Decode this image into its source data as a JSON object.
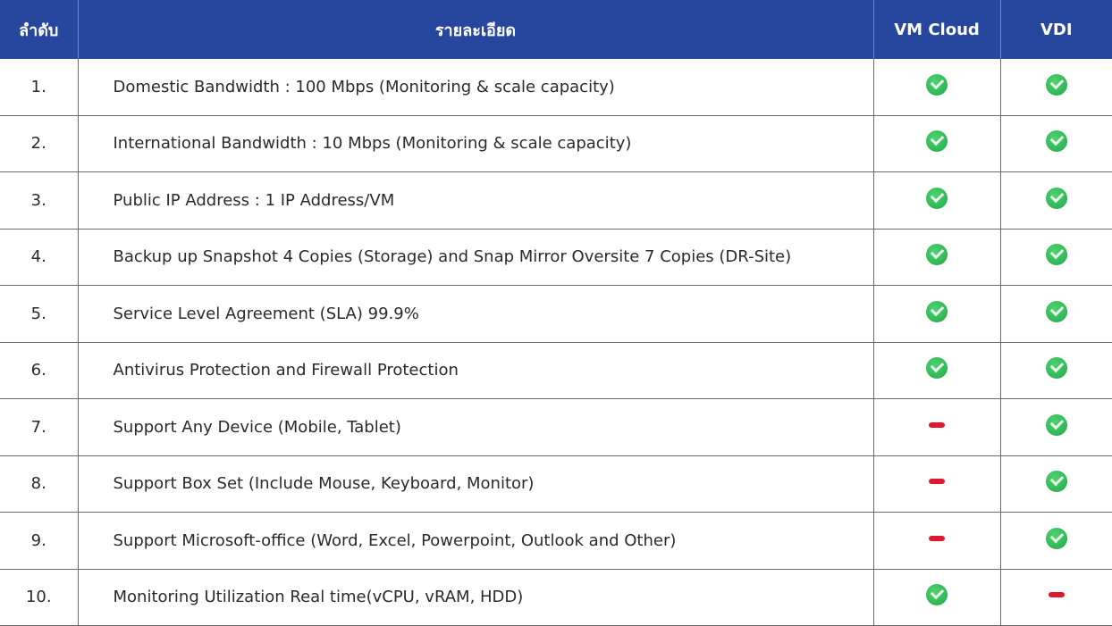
{
  "header": {
    "order": "ลำดับ",
    "details": "รายละเอียด",
    "vm_cloud": "VM Cloud",
    "vdi": "VDI"
  },
  "colors": {
    "header_bg": "#27479e",
    "check": "#22a84a",
    "dash": "#e0182d"
  },
  "rows": [
    {
      "num": "1.",
      "desc": "Domestic Bandwidth : 100 Mbps (Monitoring & scale capacity)",
      "vm": "check-icon",
      "vdi": "check-icon"
    },
    {
      "num": "2.",
      "desc": "International Bandwidth : 10 Mbps (Monitoring & scale capacity)",
      "vm": "check-icon",
      "vdi": "check-icon"
    },
    {
      "num": "3.",
      "desc": "Public IP Address : 1 IP Address/VM",
      "vm": "check-icon",
      "vdi": "check-icon"
    },
    {
      "num": "4.",
      "desc": "Backup up Snapshot 4 Copies (Storage) and Snap Mirror Oversite 7 Copies (DR-Site)",
      "vm": "check-icon",
      "vdi": "check-icon"
    },
    {
      "num": "5.",
      "desc": "Service Level Agreement (SLA) 99.9%",
      "vm": "check-icon",
      "vdi": "check-icon"
    },
    {
      "num": "6.",
      "desc": "Antivirus Protection and Firewall Protection",
      "vm": "check-icon",
      "vdi": "check-icon"
    },
    {
      "num": "7.",
      "desc": "Support Any Device (Mobile, Tablet)",
      "vm": "dash-icon",
      "vdi": "check-icon"
    },
    {
      "num": "8.",
      "desc": "Support Box Set (Include Mouse, Keyboard, Monitor)",
      "vm": "dash-icon",
      "vdi": "check-icon"
    },
    {
      "num": "9.",
      "desc": "Support Microsoft-office (Word, Excel, Powerpoint, Outlook and Other)",
      "vm": "dash-icon",
      "vdi": "check-icon"
    },
    {
      "num": "10.",
      "desc": "Monitoring Utilization Real time(vCPU, vRAM, HDD)",
      "vm": "check-icon",
      "vdi": "dash-icon"
    }
  ]
}
